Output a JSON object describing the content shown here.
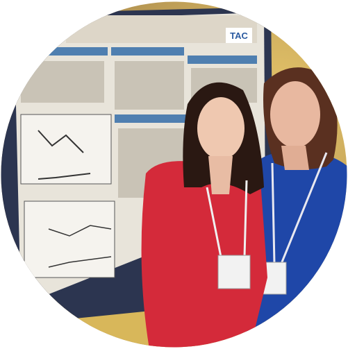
{
  "poster": {
    "logo": "TAC"
  }
}
